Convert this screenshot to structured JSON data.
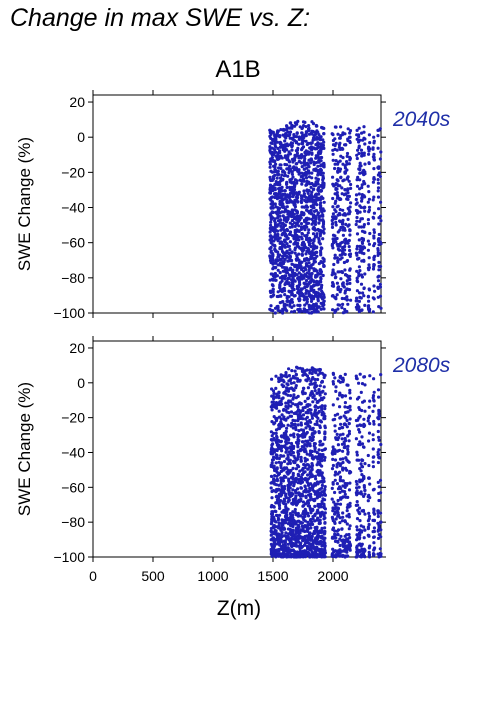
{
  "figure": {
    "title": "Change in max SWE vs. Z:",
    "scenario": "A1B"
  },
  "colors": {
    "points": "#1f1fb4",
    "period_label": "#1f2fa8",
    "axis": "#000000"
  },
  "chart_data": [
    {
      "type": "scatter",
      "period_label": "2040s",
      "ylabel": "SWE Change (%)",
      "xlabel": "",
      "xlim": [
        0,
        2400
      ],
      "ylim": [
        -100,
        24
      ],
      "yticks": [
        20,
        0,
        -20,
        -40,
        -60,
        -80,
        -100
      ],
      "xticks": [
        0,
        500,
        1000,
        1500,
        2000
      ],
      "show_x_tick_labels": false,
      "series": [
        {
          "x_range": [
            1480,
            2400
          ],
          "y_range": [
            -100,
            9
          ],
          "description_columns": [
            1480,
            1500,
            1520,
            1540,
            1560,
            1580,
            1600,
            1620,
            1640,
            1660,
            1680,
            1700,
            1720,
            1740,
            1760,
            1780,
            1800,
            1820,
            1840,
            1860,
            1880,
            1900,
            1920,
            2000,
            2020,
            2040,
            2060,
            2080,
            2100,
            2120,
            2140,
            2200,
            2220,
            2240,
            2260,
            2300,
            2340,
            2380,
            2400
          ]
        }
      ]
    },
    {
      "type": "scatter",
      "period_label": "2080s",
      "ylabel": "SWE Change (%)",
      "xlabel": "Z(m)",
      "xlim": [
        0,
        2400
      ],
      "ylim": [
        -100,
        24
      ],
      "yticks": [
        20,
        0,
        -20,
        -40,
        -60,
        -80,
        -100
      ],
      "xticks": [
        0,
        500,
        1000,
        1500,
        2000
      ],
      "show_x_tick_labels": true,
      "series": [
        {
          "x_range": [
            1490,
            2400
          ],
          "y_range": [
            -100,
            9
          ],
          "description_columns": [
            1490,
            1510,
            1530,
            1550,
            1570,
            1590,
            1610,
            1630,
            1650,
            1670,
            1690,
            1710,
            1730,
            1750,
            1770,
            1790,
            1810,
            1830,
            1850,
            1870,
            1890,
            1910,
            1930,
            2000,
            2020,
            2040,
            2060,
            2080,
            2100,
            2120,
            2140,
            2200,
            2220,
            2240,
            2260,
            2300,
            2340,
            2380,
            2400
          ]
        }
      ]
    }
  ]
}
